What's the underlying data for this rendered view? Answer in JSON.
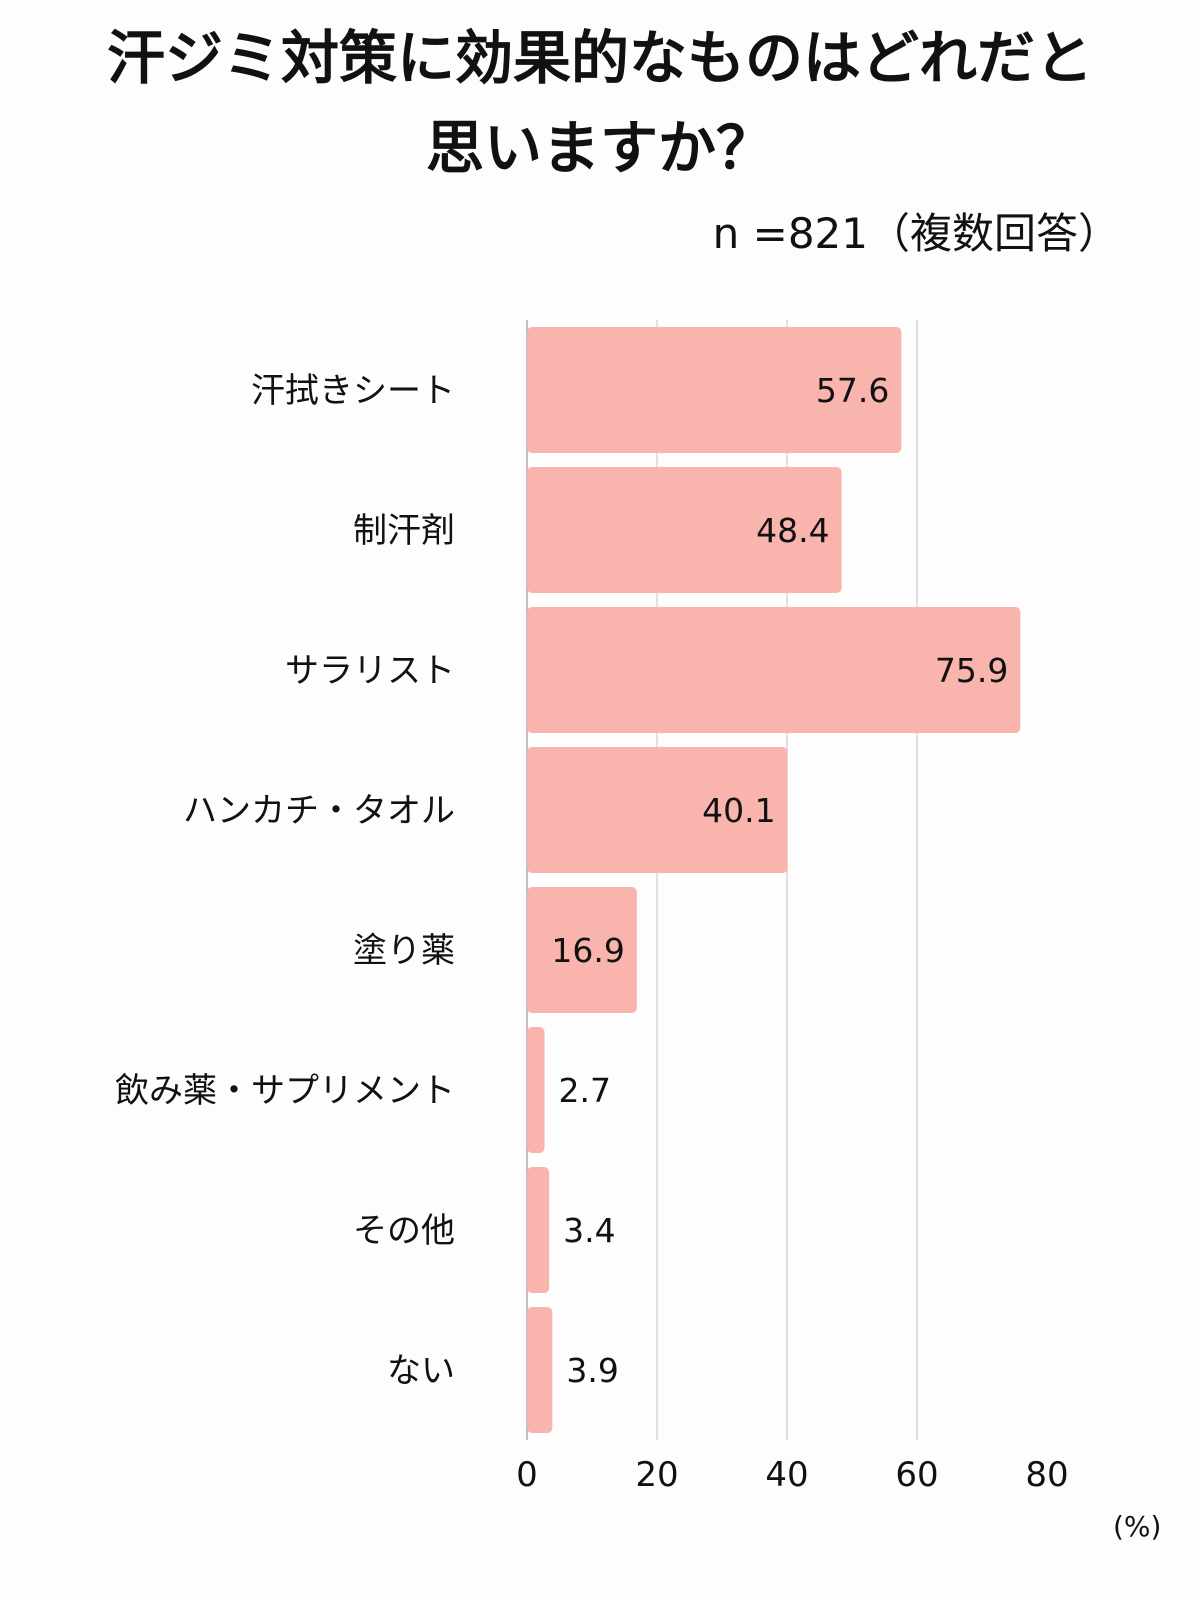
{
  "title_line1": "汗ジミ対策に効果的なものはどれだと",
  "title_line2": "思いますか？",
  "sample_note": "n =821（複数回答）",
  "colors": {
    "bar": "#f8b4ad",
    "grid": "#cccccc",
    "text": "#111111"
  },
  "chart_data": {
    "type": "bar",
    "orientation": "horizontal",
    "title": "汗ジミ対策に効果的なものはどれだと思いますか？",
    "categories": [
      "汗拭きシート",
      "制汗剤",
      "サラリスト",
      "ハンカチ・タオル",
      "塗り薬",
      "飲み薬・サプリメント",
      "その他",
      "ない"
    ],
    "values": [
      57.6,
      48.4,
      75.9,
      40.1,
      16.9,
      2.7,
      3.4,
      3.9
    ],
    "value_labels": [
      "57.6",
      "48.4",
      "75.9",
      "40.1",
      "16.9",
      "2.7",
      "3.4",
      "3.9"
    ],
    "xlim": [
      0,
      80
    ],
    "xticks": [
      "0",
      "20",
      "40",
      "60",
      "80"
    ],
    "xlabel": "(%)",
    "grid": true
  }
}
